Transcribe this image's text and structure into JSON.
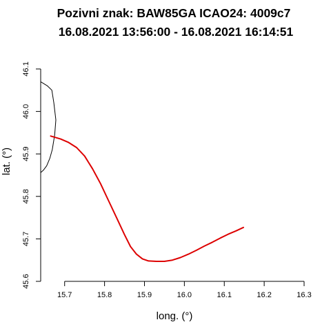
{
  "chart_data": {
    "type": "line",
    "title": [
      "Pozivni znak: BAW85GA  ICAO24: 4009c7",
      "16.08.2021 13:56:00 - 16.08.2021 16:14:51"
    ],
    "xlabel": "long. (°)",
    "ylabel": "lat. (°)",
    "xlim": [
      15.64,
      16.3
    ],
    "ylim": [
      45.6,
      46.1
    ],
    "x_ticks": [
      "15.7",
      "15.8",
      "15.9",
      "16.0",
      "16.1",
      "16.2",
      "16.3"
    ],
    "y_ticks": [
      "45.6",
      "45.7",
      "45.8",
      "45.9",
      "46.0",
      "46.1"
    ],
    "grid": false,
    "series": [
      {
        "color": "#000000",
        "points": [
          [
            15.64,
            46.07
          ],
          [
            15.657,
            46.06
          ],
          [
            15.668,
            46.05
          ],
          [
            15.673,
            46.02
          ],
          [
            15.678,
            45.98
          ],
          [
            15.675,
            45.945
          ],
          [
            15.669,
            45.91
          ],
          [
            15.663,
            45.89
          ],
          [
            15.655,
            45.872
          ],
          [
            15.647,
            45.862
          ],
          [
            15.64,
            45.856
          ]
        ]
      },
      {
        "color": "#dd0000",
        "points": [
          [
            15.665,
            45.942
          ],
          [
            15.69,
            45.935
          ],
          [
            15.71,
            45.927
          ],
          [
            15.73,
            45.915
          ],
          [
            15.75,
            45.895
          ],
          [
            15.77,
            45.865
          ],
          [
            15.79,
            45.83
          ],
          [
            15.81,
            45.79
          ],
          [
            15.83,
            45.75
          ],
          [
            15.85,
            45.71
          ],
          [
            15.865,
            45.682
          ],
          [
            15.88,
            45.664
          ],
          [
            15.895,
            45.653
          ],
          [
            15.91,
            45.648
          ],
          [
            15.93,
            45.647
          ],
          [
            15.95,
            45.647
          ],
          [
            15.97,
            45.65
          ],
          [
            15.99,
            45.656
          ],
          [
            16.01,
            45.664
          ],
          [
            16.03,
            45.673
          ],
          [
            16.05,
            45.683
          ],
          [
            16.07,
            45.692
          ],
          [
            16.09,
            45.702
          ],
          [
            16.11,
            45.711
          ],
          [
            16.13,
            45.719
          ],
          [
            16.148,
            45.727
          ]
        ]
      }
    ]
  }
}
